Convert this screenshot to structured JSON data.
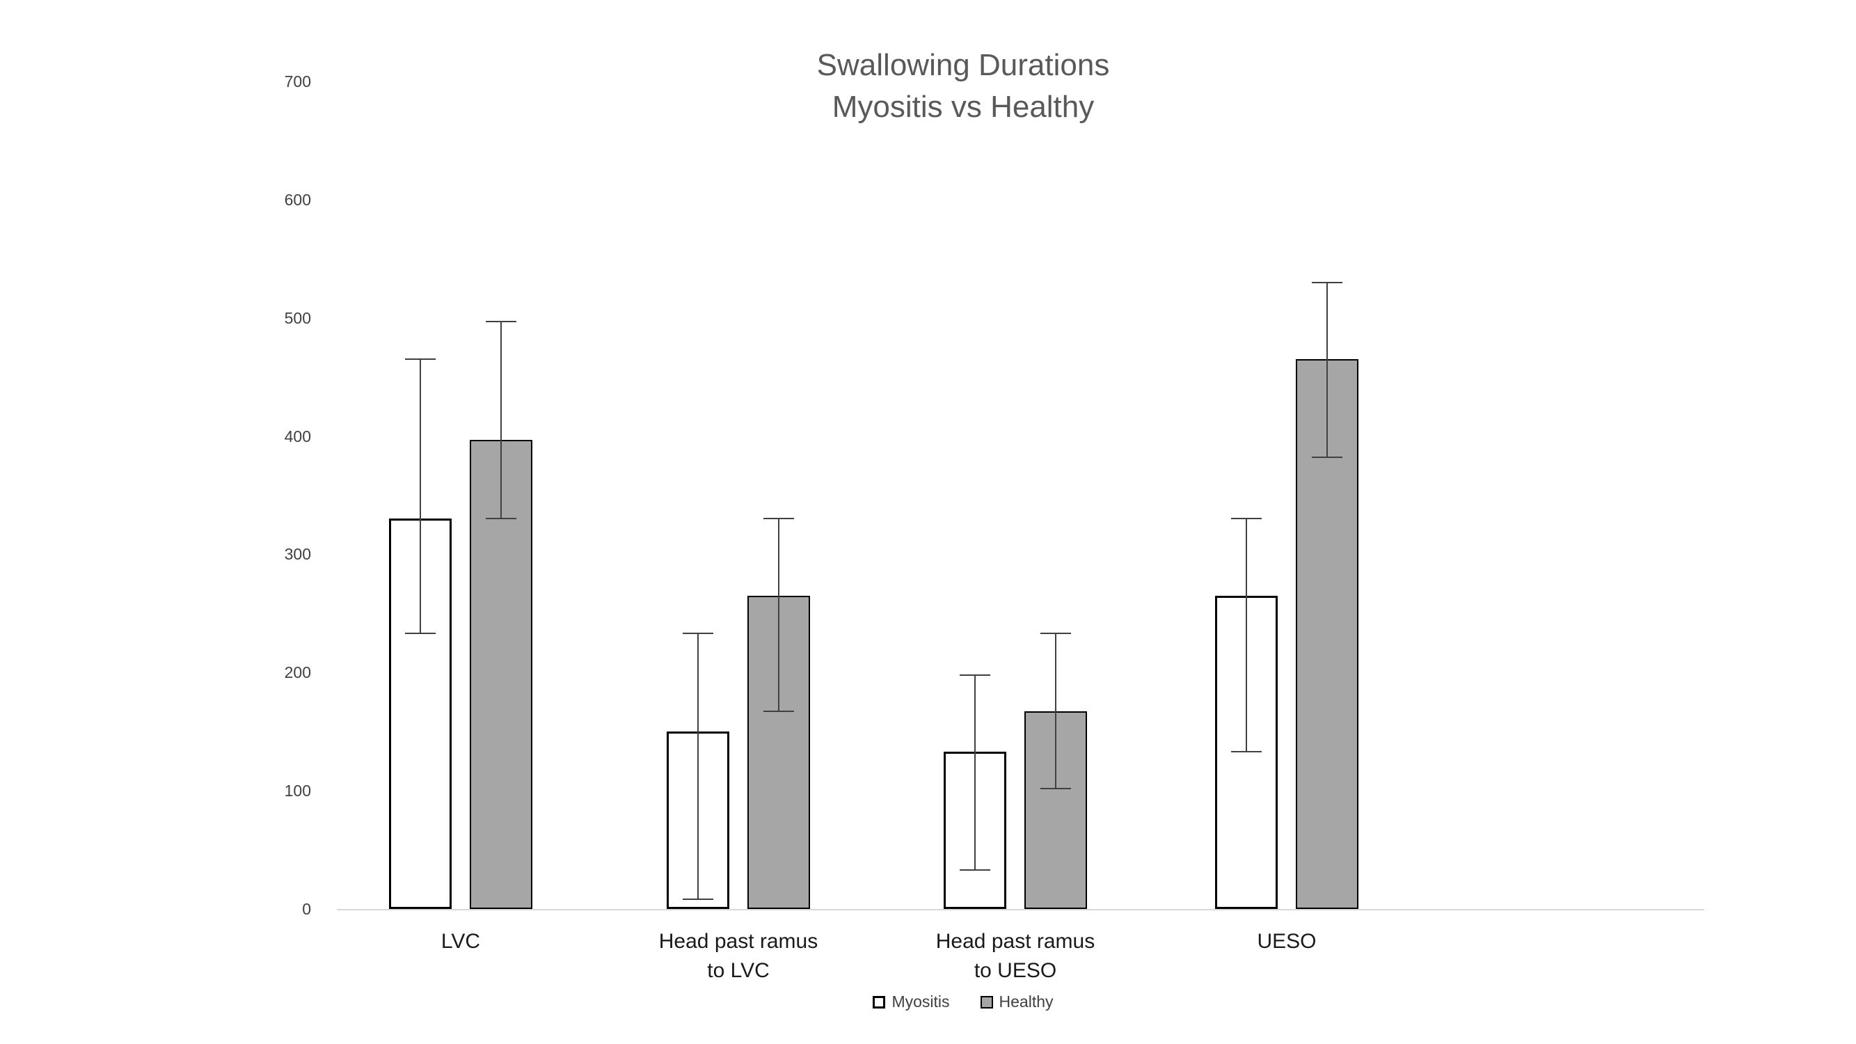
{
  "chart_data": {
    "type": "bar",
    "title": "Swallowing Durations Myositis vs Healthy",
    "title_lines": [
      "Swallowing Durations",
      "Myositis vs Healthy"
    ],
    "categories": [
      "LVC",
      "Head past ramus\nto LVC",
      "Head past ramus\nto UESO",
      "UESO"
    ],
    "series": [
      {
        "name": "Myositis",
        "fill": "#ffffff",
        "border": "#000000",
        "values": [
          330,
          150,
          133,
          265
        ],
        "error_low": [
          233,
          8,
          33,
          133
        ],
        "error_high": [
          465,
          233,
          198,
          330
        ]
      },
      {
        "name": "Healthy",
        "fill": "#a6a6a6",
        "border": "#000000",
        "values": [
          397,
          265,
          167,
          465
        ],
        "error_low": [
          330,
          167,
          102,
          382
        ],
        "error_high": [
          497,
          330,
          233,
          530
        ]
      }
    ],
    "xlabel": "",
    "ylabel": "",
    "ylim": [
      0,
      700
    ],
    "ytick_step": 100,
    "yticks": [
      0,
      100,
      200,
      300,
      400,
      500,
      600,
      700
    ],
    "grid": false,
    "legend_position": "bottom",
    "colors": {
      "title_text": "#595959",
      "tick_text": "#404040",
      "category_text": "#1a1a1a",
      "legend_text": "#404040",
      "axis_line": "#d9d9d9",
      "error_bar": "#404040"
    }
  }
}
